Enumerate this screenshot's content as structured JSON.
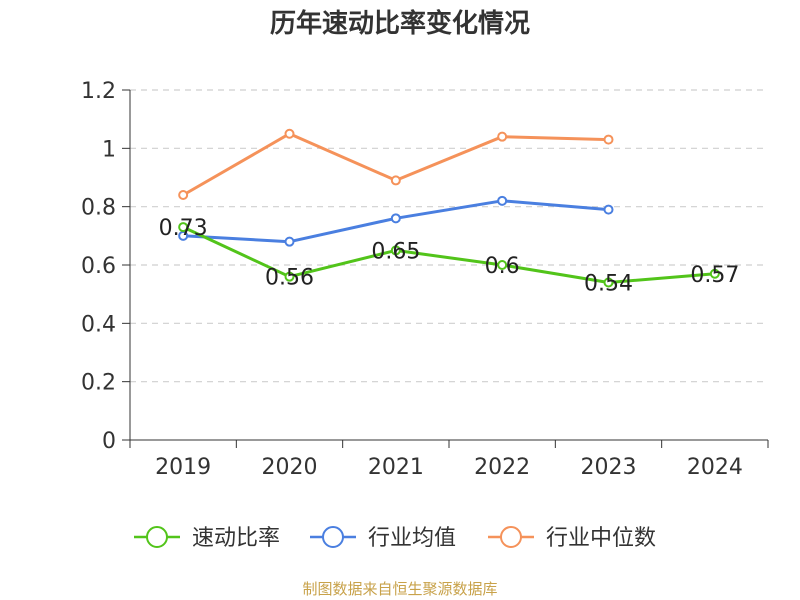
{
  "chart_data": {
    "type": "line",
    "title": "历年速动比率变化情况",
    "categories": [
      "2019",
      "2020",
      "2021",
      "2022",
      "2023",
      "2024"
    ],
    "ylim": [
      0,
      1.2
    ],
    "yticks": [
      0,
      0.2,
      0.4,
      0.6,
      0.8,
      1,
      1.2
    ],
    "ytick_labels": [
      "0",
      "0.2",
      "0.4",
      "0.6",
      "0.8",
      "1",
      "1.2"
    ],
    "grid": true,
    "legend_position": "bottom-center",
    "series": [
      {
        "name": "速动比率",
        "color": "#52c41a",
        "values": [
          0.73,
          0.56,
          0.65,
          0.6,
          0.54,
          0.57
        ],
        "labels": [
          "0.73",
          "0.56",
          "0.65",
          "0.6",
          "0.54",
          "0.57"
        ],
        "show_labels": true
      },
      {
        "name": "行业均值",
        "color": "#4a7fe0",
        "values": [
          0.7,
          0.68,
          0.76,
          0.82,
          0.79,
          null
        ],
        "show_labels": false
      },
      {
        "name": "行业中位数",
        "color": "#f5925a",
        "values": [
          0.84,
          1.05,
          0.89,
          1.04,
          1.03,
          null
        ],
        "show_labels": false
      }
    ]
  },
  "footer": {
    "source": "制图数据来自恒生聚源数据库",
    "source_color": "#c8a24a"
  }
}
